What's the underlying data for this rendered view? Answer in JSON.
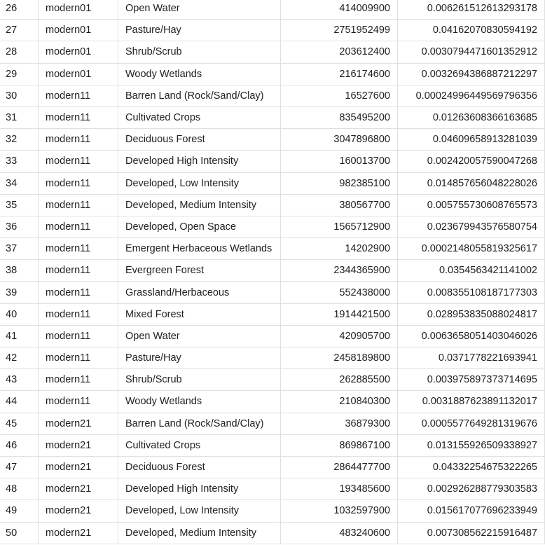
{
  "table": {
    "rows": [
      {
        "idx": "26",
        "period": "modern01",
        "land_class": "Open Water",
        "area": "414009900",
        "fraction": "0.006261512613293178"
      },
      {
        "idx": "27",
        "period": "modern01",
        "land_class": "Pasture/Hay",
        "area": "2751952499",
        "fraction": "0.04162070830594192"
      },
      {
        "idx": "28",
        "period": "modern01",
        "land_class": "Shrub/Scrub",
        "area": "203612400",
        "fraction": "0.0030794471601352912"
      },
      {
        "idx": "29",
        "period": "modern01",
        "land_class": "Woody Wetlands",
        "area": "216174600",
        "fraction": "0.0032694386887212297"
      },
      {
        "idx": "30",
        "period": "modern11",
        "land_class": "Barren Land (Rock/Sand/Clay)",
        "area": "16527600",
        "fraction": "0.00024996449569796356"
      },
      {
        "idx": "31",
        "period": "modern11",
        "land_class": "Cultivated Crops",
        "area": "835495200",
        "fraction": "0.01263608366163685"
      },
      {
        "idx": "32",
        "period": "modern11",
        "land_class": "Deciduous Forest",
        "area": "3047896800",
        "fraction": "0.04609658913281039"
      },
      {
        "idx": "33",
        "period": "modern11",
        "land_class": "Developed High Intensity",
        "area": "160013700",
        "fraction": "0.002420057590047268"
      },
      {
        "idx": "34",
        "period": "modern11",
        "land_class": "Developed, Low Intensity",
        "area": "982385100",
        "fraction": "0.014857656048228026"
      },
      {
        "idx": "35",
        "period": "modern11",
        "land_class": "Developed, Medium Intensity",
        "area": "380567700",
        "fraction": "0.005755730608765573"
      },
      {
        "idx": "36",
        "period": "modern11",
        "land_class": "Developed, Open Space",
        "area": "1565712900",
        "fraction": "0.023679943576580754"
      },
      {
        "idx": "37",
        "period": "modern11",
        "land_class": "Emergent Herbaceous Wetlands",
        "area": "14202900",
        "fraction": "0.0002148055819325617"
      },
      {
        "idx": "38",
        "period": "modern11",
        "land_class": "Evergreen Forest",
        "area": "2344365900",
        "fraction": "0.0354563421141002"
      },
      {
        "idx": "39",
        "period": "modern11",
        "land_class": "Grassland/Herbaceous",
        "area": "552438000",
        "fraction": "0.008355108187177303"
      },
      {
        "idx": "40",
        "period": "modern11",
        "land_class": "Mixed Forest",
        "area": "1914421500",
        "fraction": "0.028953835088024817"
      },
      {
        "idx": "41",
        "period": "modern11",
        "land_class": "Open Water",
        "area": "420905700",
        "fraction": "0.006365805140304602 6"
      },
      {
        "idx": "42",
        "period": "modern11",
        "land_class": "Pasture/Hay",
        "area": "2458189800",
        "fraction": "0.0371778221693941"
      },
      {
        "idx": "43",
        "period": "modern11",
        "land_class": "Shrub/Scrub",
        "area": "262885500",
        "fraction": "0.003975897373714695"
      },
      {
        "idx": "44",
        "period": "modern11",
        "land_class": "Woody Wetlands",
        "area": "210840300",
        "fraction": "0.0031887623891132017"
      },
      {
        "idx": "45",
        "period": "modern21",
        "land_class": "Barren Land (Rock/Sand/Clay)",
        "area": "36879300",
        "fraction": "0.0005577649281319676"
      },
      {
        "idx": "46",
        "period": "modern21",
        "land_class": "Cultivated Crops",
        "area": "869867100",
        "fraction": "0.013155926509338927"
      },
      {
        "idx": "47",
        "period": "modern21",
        "land_class": "Deciduous Forest",
        "area": "2864477700",
        "fraction": "0.04332254675322265"
      },
      {
        "idx": "48",
        "period": "modern21",
        "land_class": "Developed High Intensity",
        "area": "193485600",
        "fraction": "0.002926288779303583"
      },
      {
        "idx": "49",
        "period": "modern21",
        "land_class": "Developed, Low Intensity",
        "area": "1032597900",
        "fraction": "0.015617077696233949"
      },
      {
        "idx": "50",
        "period": "modern21",
        "land_class": "Developed, Medium Intensity",
        "area": "483240600",
        "fraction": "0.007308562215916487"
      }
    ]
  }
}
